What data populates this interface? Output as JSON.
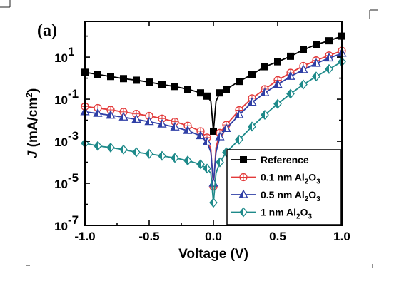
{
  "chart_data": {
    "type": "line",
    "panel_label": "(a)",
    "xlabel": "Voltage (V)",
    "ylabel": {
      "italic": "J",
      "rest": " (mA/cm",
      "sup": "2",
      "close": ")"
    },
    "xlim": [
      -1.0,
      1.0
    ],
    "ylim": [
      1e-07,
      500
    ],
    "yscale": "log",
    "x_ticks": [
      "-1.0",
      "-0.5",
      "0.0",
      "0.5",
      "1.0"
    ],
    "x_tick_values": [
      -1.0,
      -0.5,
      0.0,
      0.5,
      1.0
    ],
    "y_ticks": [
      {
        "base": "10",
        "exp": "-7",
        "value": 1e-07
      },
      {
        "base": "10",
        "exp": "-5",
        "value": 1e-05
      },
      {
        "base": "10",
        "exp": "-3",
        "value": 0.001
      },
      {
        "base": "10",
        "exp": "-1",
        "value": 0.1
      },
      {
        "base": "10",
        "exp": "1",
        "value": 10
      }
    ],
    "legend_position": "lower-right",
    "series": [
      {
        "name": "Reference",
        "legend": {
          "pre": "Reference",
          "sub": "",
          "post": ""
        },
        "color": "#000000",
        "marker": "square",
        "x": [
          -1.0,
          -0.9,
          -0.8,
          -0.7,
          -0.6,
          -0.5,
          -0.4,
          -0.3,
          -0.2,
          -0.1,
          -0.05,
          -0.02,
          0.0,
          0.02,
          0.05,
          0.1,
          0.2,
          0.3,
          0.4,
          0.5,
          0.6,
          0.7,
          0.8,
          0.9,
          1.0
        ],
        "y": [
          1.9,
          1.5,
          1.2,
          0.95,
          0.8,
          0.65,
          0.5,
          0.4,
          0.3,
          0.2,
          0.14,
          0.08,
          0.003,
          0.08,
          0.2,
          0.3,
          0.7,
          1.5,
          3.5,
          6,
          11,
          22,
          40,
          60,
          100
        ]
      },
      {
        "name": "0.1 nm Al2O3",
        "legend": {
          "pre": "0.1 nm Al",
          "sub": "2",
          "post": "O",
          "sub2": "3"
        },
        "color": "#e33a3a",
        "marker": "circle",
        "x": [
          -1.0,
          -0.9,
          -0.8,
          -0.7,
          -0.6,
          -0.5,
          -0.4,
          -0.3,
          -0.2,
          -0.1,
          -0.05,
          -0.02,
          0.0,
          0.02,
          0.05,
          0.1,
          0.2,
          0.3,
          0.4,
          0.5,
          0.6,
          0.7,
          0.8,
          0.9,
          1.0
        ],
        "y": [
          0.045,
          0.038,
          0.031,
          0.025,
          0.02,
          0.016,
          0.012,
          0.0085,
          0.0055,
          0.003,
          0.0015,
          0.0004,
          7e-06,
          0.0005,
          0.0025,
          0.006,
          0.03,
          0.11,
          0.3,
          0.8,
          1.8,
          3.8,
          7,
          12,
          20
        ]
      },
      {
        "name": "0.5 nm Al2O3",
        "legend": {
          "pre": "0.5 nm Al",
          "sub": "2",
          "post": "O",
          "sub2": "3"
        },
        "color": "#2f3fa6",
        "marker": "triangle",
        "x": [
          -1.0,
          -0.9,
          -0.8,
          -0.7,
          -0.6,
          -0.5,
          -0.4,
          -0.3,
          -0.2,
          -0.1,
          -0.05,
          -0.02,
          0.0,
          0.02,
          0.05,
          0.1,
          0.2,
          0.3,
          0.4,
          0.5,
          0.6,
          0.7,
          0.8,
          0.9,
          1.0
        ],
        "y": [
          0.025,
          0.021,
          0.017,
          0.014,
          0.011,
          0.0085,
          0.0065,
          0.0047,
          0.0032,
          0.0018,
          0.0009,
          0.0003,
          1e-05,
          0.0003,
          0.0016,
          0.004,
          0.018,
          0.07,
          0.2,
          0.5,
          1.2,
          2.5,
          5,
          9,
          15
        ]
      },
      {
        "name": "1 nm Al2O3",
        "legend": {
          "pre": "1 nm Al",
          "sub": "2",
          "post": "O",
          "sub2": "3"
        },
        "color": "#1e8a8a",
        "marker": "diamond",
        "x": [
          -1.0,
          -0.9,
          -0.8,
          -0.7,
          -0.6,
          -0.5,
          -0.4,
          -0.3,
          -0.2,
          -0.1,
          -0.05,
          -0.02,
          0.0,
          0.02,
          0.05,
          0.1,
          0.2,
          0.3,
          0.4,
          0.5,
          0.6,
          0.7,
          0.8,
          0.9,
          1.0
        ],
        "y": [
          0.0008,
          0.0006,
          0.0005,
          0.0004,
          0.0003,
          0.00025,
          0.0002,
          0.00016,
          0.00012,
          8e-05,
          5e-05,
          3e-05,
          1.2e-06,
          3e-05,
          0.0001,
          0.0003,
          0.0012,
          0.005,
          0.018,
          0.06,
          0.18,
          0.5,
          1.2,
          2.7,
          6
        ]
      }
    ]
  }
}
